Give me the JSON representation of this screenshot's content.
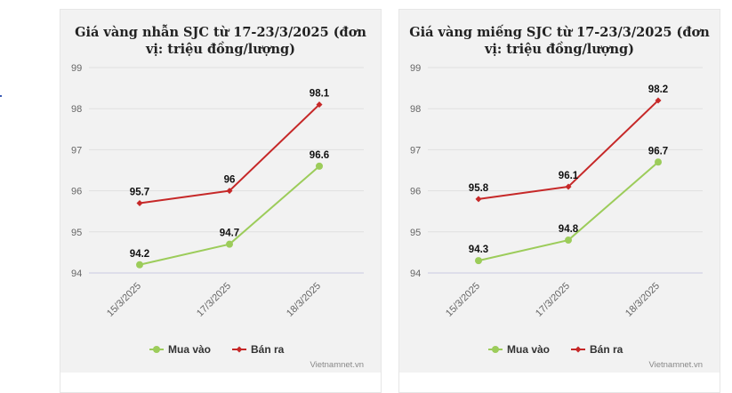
{
  "chart_data": [
    {
      "type": "line",
      "title": "Giá vàng nhẫn SJC từ 17-23/3/2025 (đơn vị: triệu đồng/lượng)",
      "title_lines": [
        "Giá vàng nhẫn SJC từ 17-23/3/2025 (đơn",
        "vị: triệu đồng/lượng)"
      ],
      "categories": [
        "15/3/2025",
        "17/3/2025",
        "18/3/2025"
      ],
      "series": [
        {
          "name": "Mua vào",
          "values": [
            94.2,
            94.7,
            96.6
          ],
          "color": "#9ccc5a",
          "marker": "circle"
        },
        {
          "name": "Bán ra",
          "values": [
            95.7,
            96,
            98.1
          ],
          "color": "#c62828",
          "marker": "diamond"
        }
      ],
      "yticks": [
        "94",
        "95",
        "96",
        "97",
        "98",
        "99"
      ],
      "ylim": [
        94,
        99
      ],
      "grid": true,
      "legend": "bottom",
      "credit": "Vietnamnet.vn"
    },
    {
      "type": "line",
      "title": "Giá vàng miếng SJC từ 17-23/3/2025 (đơn vị: triệu đồng/lượng)",
      "title_lines": [
        "Giá vàng miếng SJC từ 17-23/3/2025 (đơn",
        "vị: triệu đồng/lượng)"
      ],
      "categories": [
        "15/3/2025",
        "17/3/2025",
        "18/3/2025"
      ],
      "series": [
        {
          "name": "Mua vào",
          "values": [
            94.3,
            94.8,
            96.7
          ],
          "color": "#9ccc5a",
          "marker": "circle"
        },
        {
          "name": "Bán ra",
          "values": [
            95.8,
            96.1,
            98.2
          ],
          "color": "#c62828",
          "marker": "diamond"
        }
      ],
      "yticks": [
        "94",
        "95",
        "96",
        "97",
        "98",
        "99"
      ],
      "ylim": [
        94,
        99
      ],
      "grid": true,
      "legend": "bottom",
      "credit": "Vietnamnet.vn"
    }
  ]
}
